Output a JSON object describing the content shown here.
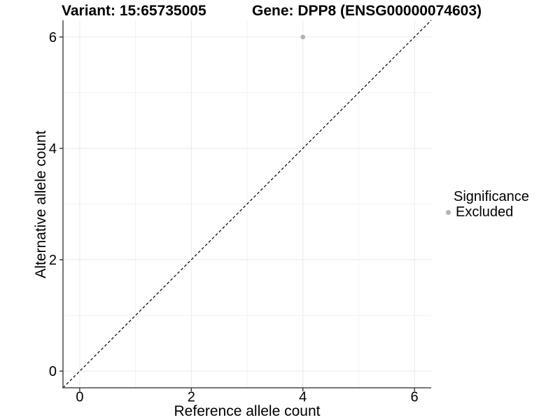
{
  "chart_data": {
    "type": "scatter",
    "titles": [
      "Variant: 15:65735005",
      "Gene: DPP8 (ENSG00000074603)"
    ],
    "xlabel": "Reference allele count",
    "ylabel": "Alternative allele count",
    "xlim": [
      -0.3,
      6.3
    ],
    "ylim": [
      -0.3,
      6.3
    ],
    "x_ticks": [
      0,
      2,
      4,
      6
    ],
    "y_ticks": [
      0,
      2,
      4,
      6
    ],
    "x_minor": [
      1,
      3,
      5
    ],
    "y_minor": [
      1,
      3,
      5
    ],
    "grid": "major and minor gridlines on, white background",
    "identity_line": {
      "slope": 1,
      "intercept": 0,
      "style": "dashed",
      "color": "#000000"
    },
    "series": [
      {
        "name": "Excluded",
        "color": "#b3b3b3",
        "point_radius": 3.4,
        "points": [
          {
            "x": 4,
            "y": 6
          }
        ]
      }
    ],
    "legend": {
      "title": "Significance",
      "position": "right",
      "items": [
        {
          "label": "Excluded",
          "color": "#b3b3b3"
        }
      ]
    }
  },
  "colors": {
    "background": "#ffffff",
    "grid_major": "#e9e9e9",
    "grid_minor": "#f2f2f2",
    "axis_line": "#4a4a4a",
    "tick": "#333333",
    "text": "#000000"
  }
}
